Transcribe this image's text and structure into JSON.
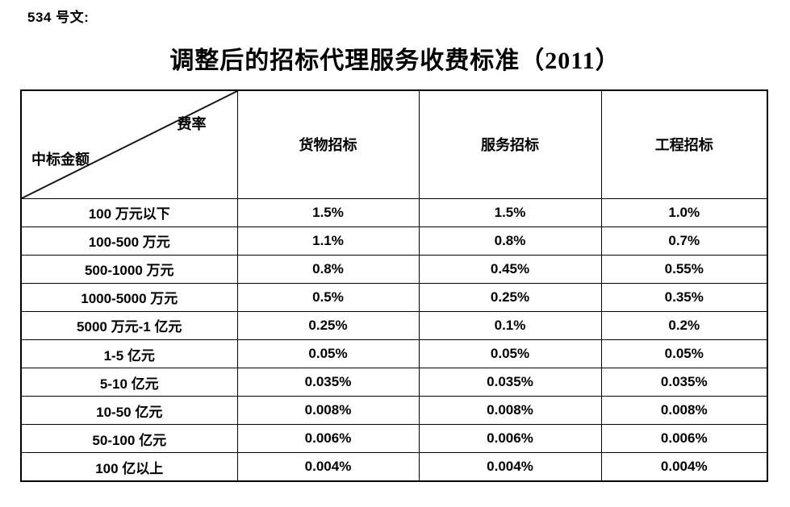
{
  "doc": {
    "ref_label": "534 号文:",
    "title": "调整后的招标代理服务收费标准（2011）"
  },
  "table": {
    "corner": {
      "top_right": "费率",
      "bottom_left": "中标金额"
    },
    "columns": [
      "货物招标",
      "服务招标",
      "工程招标"
    ],
    "rows": [
      {
        "label": "100 万元以下",
        "values": [
          "1.5%",
          "1.5%",
          "1.0%"
        ]
      },
      {
        "label": "100-500 万元",
        "values": [
          "1.1%",
          "0.8%",
          "0.7%"
        ]
      },
      {
        "label": "500-1000 万元",
        "values": [
          "0.8%",
          "0.45%",
          "0.55%"
        ]
      },
      {
        "label": "1000-5000 万元",
        "values": [
          "0.5%",
          "0.25%",
          "0.35%"
        ]
      },
      {
        "label": "5000 万元-1 亿元",
        "values": [
          "0.25%",
          "0.1%",
          "0.2%"
        ]
      },
      {
        "label": "1-5 亿元",
        "values": [
          "0.05%",
          "0.05%",
          "0.05%"
        ]
      },
      {
        "label": "5-10 亿元",
        "values": [
          "0.035%",
          "0.035%",
          "0.035%"
        ]
      },
      {
        "label": "10-50 亿元",
        "values": [
          "0.008%",
          "0.008%",
          "0.008%"
        ]
      },
      {
        "label": "50-100 亿元",
        "values": [
          "0.006%",
          "0.006%",
          "0.006%"
        ]
      },
      {
        "label": "100 亿以上",
        "values": [
          "0.004%",
          "0.004%",
          "0.004%"
        ]
      }
    ]
  },
  "colors": {
    "text": "#000000",
    "border": "#000000",
    "background": "#ffffff"
  }
}
